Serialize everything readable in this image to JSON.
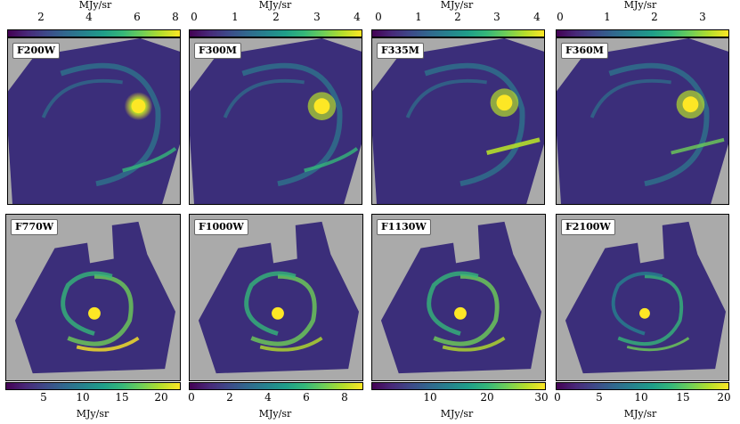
{
  "top_row": {
    "unit_label": "MJy/sr",
    "panels": [
      {
        "filter": "F200W",
        "ticks": [
          "2",
          "4",
          "6",
          "8"
        ]
      },
      {
        "filter": "F300M",
        "ticks": [
          "0",
          "1",
          "2",
          "3",
          "4"
        ]
      },
      {
        "filter": "F335M",
        "ticks": [
          "0",
          "1",
          "2",
          "3",
          "4"
        ]
      },
      {
        "filter": "F360M",
        "ticks": [
          "0",
          "1",
          "2",
          "3"
        ]
      }
    ]
  },
  "bottom_row": {
    "unit_label": "MJy/sr",
    "panels": [
      {
        "filter": "F770W",
        "ticks": [
          "5",
          "10",
          "15",
          "20"
        ]
      },
      {
        "filter": "F1000W",
        "ticks": [
          "0",
          "2",
          "4",
          "6",
          "8"
        ]
      },
      {
        "filter": "F1130W",
        "ticks": [
          "10",
          "20",
          "30"
        ]
      },
      {
        "filter": "F2100W",
        "ticks": [
          "0",
          "5",
          "10",
          "15",
          "20"
        ]
      }
    ]
  },
  "colors": {
    "background": "#aaaaaa",
    "colormap": "viridis"
  }
}
